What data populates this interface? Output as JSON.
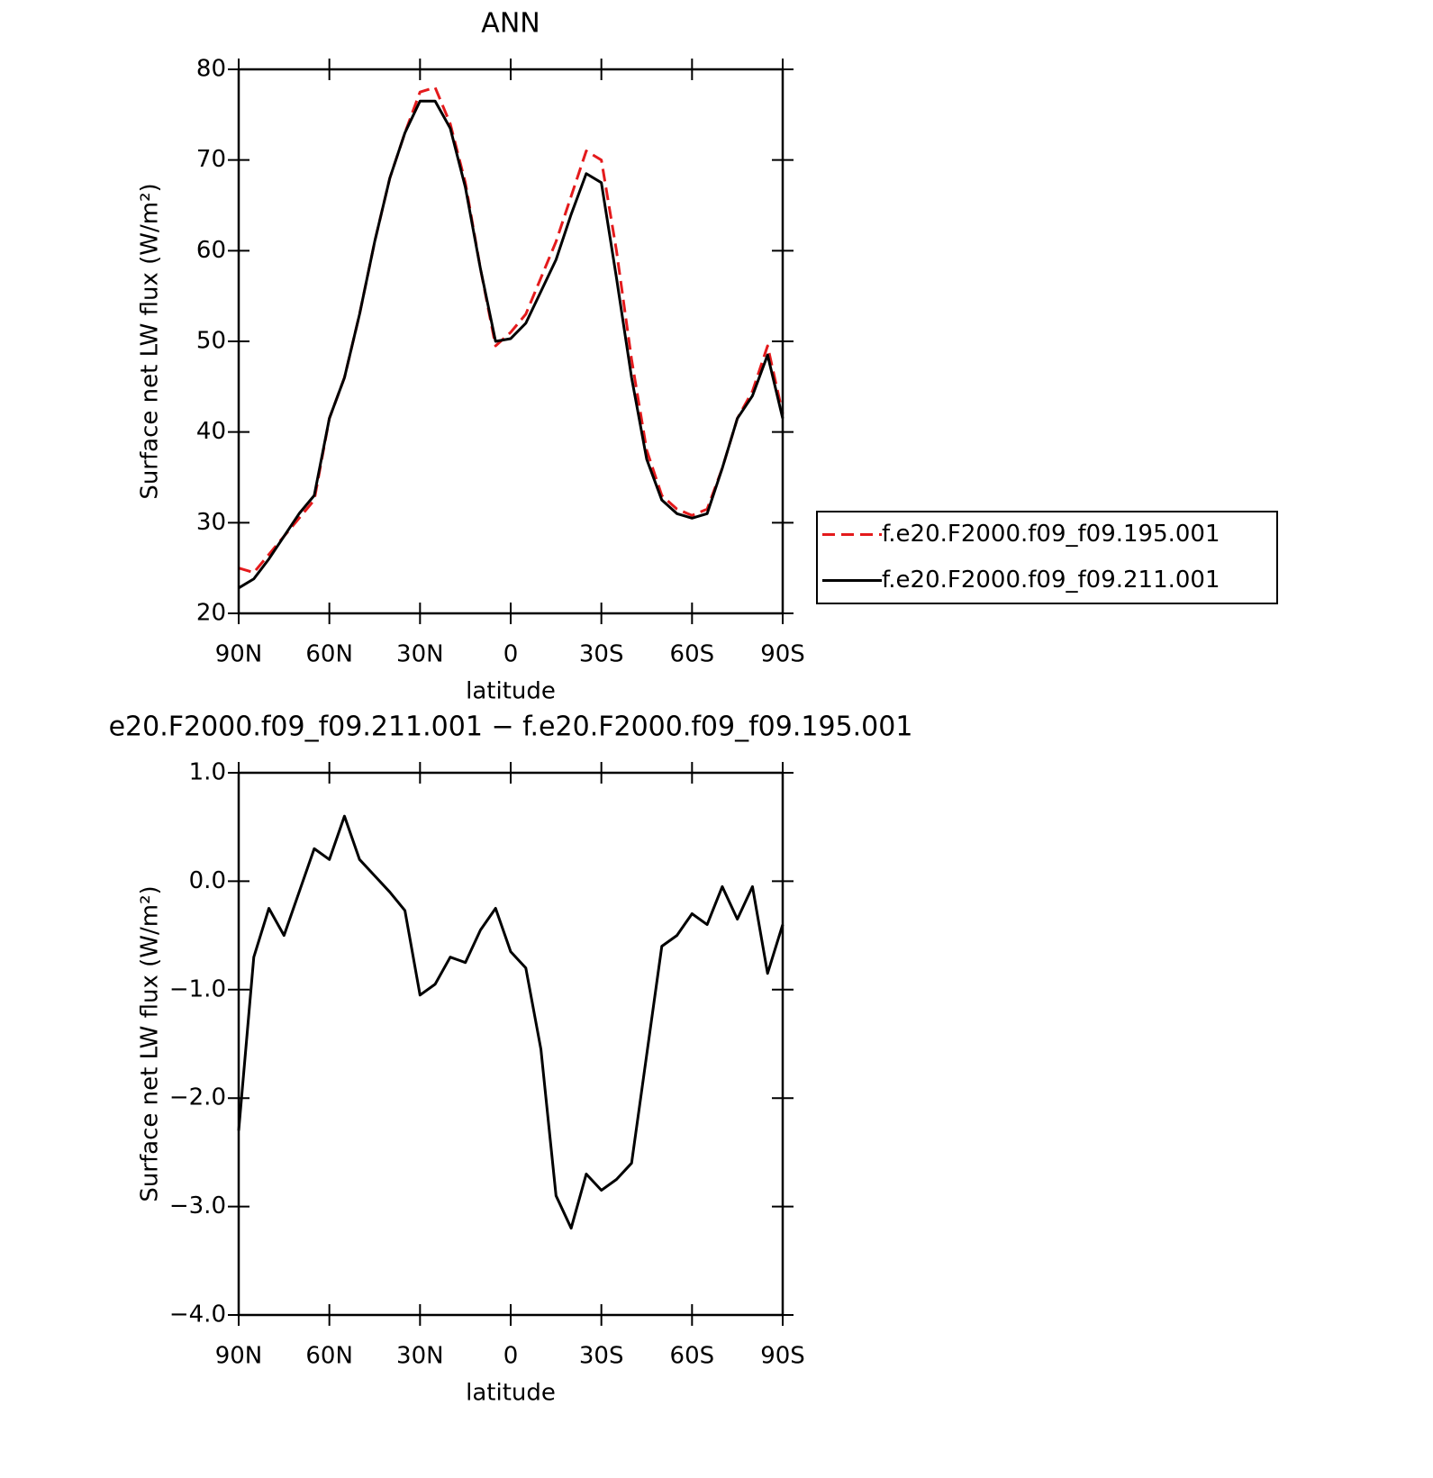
{
  "chart_data": [
    {
      "type": "line",
      "title": "ANN",
      "xlabel": "latitude",
      "ylabel": "Surface net LW flux (W/m²)",
      "x": [
        90,
        85,
        80,
        75,
        70,
        65,
        60,
        55,
        50,
        45,
        40,
        35,
        30,
        25,
        20,
        15,
        10,
        5,
        0,
        -5,
        -10,
        -15,
        -20,
        -25,
        -30,
        -35,
        -40,
        -45,
        -50,
        -55,
        -60,
        -65,
        -70,
        -75,
        -80,
        -85,
        -90
      ],
      "xlim": [
        90,
        -90
      ],
      "xticks": [
        {
          "value": 90,
          "label": "90N"
        },
        {
          "value": 60,
          "label": "60N"
        },
        {
          "value": 30,
          "label": "30N"
        },
        0,
        {
          "value": -30,
          "label": "30S"
        },
        {
          "value": -60,
          "label": "60S"
        },
        {
          "value": -90,
          "label": "90S"
        }
      ],
      "ylim": [
        20,
        80
      ],
      "yticks": [
        20,
        30,
        40,
        50,
        60,
        70,
        80
      ],
      "legend": "right",
      "series": [
        {
          "name": "f.e20.F2000.f09_f09.195.001",
          "color": "#e41a1c",
          "linestyle": "dashed",
          "values": [
            25,
            24.5,
            26.5,
            28.5,
            30.5,
            32.5,
            41.5,
            46,
            53,
            61,
            68,
            73,
            77.5,
            78,
            74,
            67.5,
            58,
            49.5,
            51,
            53,
            57,
            61,
            66,
            71,
            70,
            60,
            48,
            38,
            33,
            31.5,
            30.8,
            31.5,
            36,
            41.5,
            44.5,
            49.5,
            42
          ]
        },
        {
          "name": "f.e20.F2000.f09_f09.211.001",
          "color": "#000000",
          "linestyle": "solid",
          "values": [
            22.8,
            23.8,
            26,
            28.5,
            31,
            33,
            41.5,
            46,
            53,
            61,
            68,
            73,
            76.5,
            76.5,
            73.5,
            67,
            58,
            50,
            50.3,
            52,
            55.5,
            59,
            64,
            68.5,
            67.5,
            57,
            46,
            37,
            32.5,
            31,
            30.5,
            31,
            36,
            41.5,
            44,
            48.5,
            41.5
          ]
        }
      ]
    },
    {
      "type": "line",
      "title": "e20.F2000.f09_f09.211.001 − f.e20.F2000.f09_f09.195.001",
      "xlabel": "latitude",
      "ylabel": "Surface net LW flux (W/m²)",
      "x": [
        90,
        85,
        80,
        75,
        70,
        65,
        60,
        55,
        50,
        45,
        40,
        35,
        30,
        25,
        20,
        15,
        10,
        5,
        0,
        -5,
        -10,
        -15,
        -20,
        -25,
        -30,
        -35,
        -40,
        -45,
        -50,
        -55,
        -60,
        -65,
        -70,
        -75,
        -80,
        -85,
        -90
      ],
      "xlim": [
        90,
        -90
      ],
      "xticks": [
        {
          "value": 90,
          "label": "90N"
        },
        {
          "value": 60,
          "label": "60N"
        },
        {
          "value": 30,
          "label": "30N"
        },
        0,
        {
          "value": -30,
          "label": "30S"
        },
        {
          "value": -60,
          "label": "60S"
        },
        {
          "value": -90,
          "label": "90S"
        }
      ],
      "ylim": [
        -4,
        1
      ],
      "yticks": [
        {
          "value": -4,
          "label": "−4.0"
        },
        {
          "value": -3,
          "label": "−3.0"
        },
        {
          "value": -2,
          "label": "−2.0"
        },
        {
          "value": -1,
          "label": "−1.0"
        },
        {
          "value": 0,
          "label": "0.0"
        },
        {
          "value": 1,
          "label": "1.0"
        }
      ],
      "color": "#000000",
      "values": [
        -2.3,
        -0.7,
        -0.25,
        -0.5,
        -0.1,
        0.3,
        0.2,
        0.6,
        0.2,
        0.05,
        -0.1,
        -0.27,
        -1.05,
        -0.95,
        -0.7,
        -0.75,
        -0.45,
        -0.25,
        -0.65,
        -0.8,
        -1.55,
        -2.9,
        -3.2,
        -2.7,
        -2.85,
        -2.75,
        -2.6,
        -1.6,
        -0.6,
        -0.5,
        -0.3,
        -0.4,
        -0.05,
        -0.35,
        -0.05,
        -0.85,
        -0.4
      ]
    }
  ]
}
